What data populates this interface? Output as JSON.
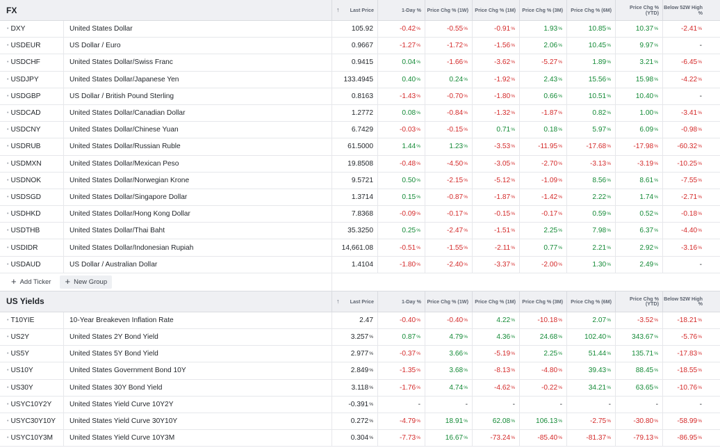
{
  "fx": {
    "title": "FX",
    "columns": {
      "sort": "↑",
      "last": "Last Price",
      "d1": "1-Day %",
      "w1": "Price Chg % (1W)",
      "m1": "Price Chg % (1M)",
      "m3": "Price Chg % (3M)",
      "m6": "Price Chg % (6M)",
      "ytd": "Price Chg % (YTD)",
      "high": "Below 52W High %"
    },
    "rows": [
      [
        "DXY",
        "United States Dollar",
        "105.92",
        "-0.42%",
        "-0.55%",
        "-0.91%",
        "1.93%",
        "10.85%",
        "10.37%",
        "-2.41%"
      ],
      [
        "USDEUR",
        "US Dollar / Euro",
        "0.9667",
        "-1.27%",
        "-1.72%",
        "-1.56%",
        "2.06%",
        "10.45%",
        "9.97%",
        "-"
      ],
      [
        "USDCHF",
        "United States Dollar/Swiss Franc",
        "0.9415",
        "0.04%",
        "-1.66%",
        "-3.62%",
        "-5.27%",
        "1.89%",
        "3.21%",
        "-6.45%"
      ],
      [
        "USDJPY",
        "United States Dollar/Japanese Yen",
        "133.4945",
        "0.40%",
        "0.24%",
        "-1.92%",
        "2.43%",
        "15.56%",
        "15.98%",
        "-4.22%"
      ],
      [
        "USDGBP",
        "US Dollar / British Pound Sterling",
        "0.8163",
        "-1.43%",
        "-0.70%",
        "-1.80%",
        "0.66%",
        "10.51%",
        "10.40%",
        "-"
      ],
      [
        "USDCAD",
        "United States Dollar/Canadian Dollar",
        "1.2772",
        "0.08%",
        "-0.84%",
        "-1.32%",
        "-1.87%",
        "0.82%",
        "1.00%",
        "-3.41%"
      ],
      [
        "USDCNY",
        "United States Dollar/Chinese Yuan",
        "6.7429",
        "-0.03%",
        "-0.15%",
        "0.71%",
        "0.18%",
        "5.97%",
        "6.09%",
        "-0.98%"
      ],
      [
        "USDRUB",
        "United States Dollar/Russian Ruble",
        "61.5000",
        "1.44%",
        "1.23%",
        "-3.53%",
        "-11.95%",
        "-17.68%",
        "-17.98%",
        "-60.32%"
      ],
      [
        "USDMXN",
        "United States Dollar/Mexican Peso",
        "19.8508",
        "-0.48%",
        "-4.50%",
        "-3.05%",
        "-2.70%",
        "-3.13%",
        "-3.19%",
        "-10.25%"
      ],
      [
        "USDNOK",
        "United States Dollar/Norwegian Krone",
        "9.5721",
        "0.50%",
        "-2.15%",
        "-5.12%",
        "-1.09%",
        "8.56%",
        "8.61%",
        "-7.55%"
      ],
      [
        "USDSGD",
        "United States Dollar/Singapore Dollar",
        "1.3714",
        "0.15%",
        "-0.87%",
        "-1.87%",
        "-1.42%",
        "2.22%",
        "1.74%",
        "-2.71%"
      ],
      [
        "USDHKD",
        "United States Dollar/Hong Kong Dollar",
        "7.8368",
        "-0.09%",
        "-0.17%",
        "-0.15%",
        "-0.17%",
        "0.59%",
        "0.52%",
        "-0.18%"
      ],
      [
        "USDTHB",
        "United States Dollar/Thai Baht",
        "35.3250",
        "0.25%",
        "-2.47%",
        "-1.51%",
        "2.25%",
        "7.98%",
        "6.37%",
        "-4.40%"
      ],
      [
        "USDIDR",
        "United States Dollar/Indonesian Rupiah",
        "14,661.08",
        "-0.51%",
        "-1.55%",
        "-2.11%",
        "0.77%",
        "2.21%",
        "2.92%",
        "-3.16%"
      ],
      [
        "USDAUD",
        "US Dollar / Australian Dollar",
        "1.4104",
        "-1.80%",
        "-2.40%",
        "-3.37%",
        "-2.00%",
        "1.30%",
        "2.49%",
        "-"
      ]
    ],
    "add_ticker": "Add Ticker",
    "new_group": "New Group"
  },
  "yields": {
    "title": "US Yields",
    "columns": {
      "sort": "↑",
      "last": "Last Price",
      "d1": "1-Day %",
      "w1": "Price Chg % (1W)",
      "m1": "Price Chg % (1M)",
      "m3": "Price Chg % (3M)",
      "m6": "Price Chg % (6M)",
      "ytd": "Price Chg % (YTD)",
      "high": "Below 52W High %"
    },
    "rows": [
      [
        "T10YIE",
        "10-Year Breakeven Inflation Rate",
        "2.47",
        "-0.40%",
        "-0.40%",
        "4.22%",
        "-10.18%",
        "2.07%",
        "-3.52%",
        "-18.21%"
      ],
      [
        "US2Y",
        "United States 2Y Bond Yield",
        "3.257%",
        "0.87%",
        "4.79%",
        "4.36%",
        "24.68%",
        "102.40%",
        "343.67%",
        "-5.76%"
      ],
      [
        "US5Y",
        "United States 5Y Bond Yield",
        "2.977%",
        "-0.37%",
        "3.66%",
        "-5.19%",
        "2.25%",
        "51.44%",
        "135.71%",
        "-17.83%"
      ],
      [
        "US10Y",
        "United States Government Bond 10Y",
        "2.849%",
        "-1.35%",
        "3.68%",
        "-8.13%",
        "-4.80%",
        "39.43%",
        "88.45%",
        "-18.55%"
      ],
      [
        "US30Y",
        "United States 30Y Bond Yield",
        "3.118%",
        "-1.76%",
        "4.74%",
        "-4.62%",
        "-0.22%",
        "34.21%",
        "63.65%",
        "-10.76%"
      ],
      [
        "USYC10Y2Y",
        "United States Yield Curve 10Y2Y",
        "-0.391%",
        "-",
        "-",
        "-",
        "-",
        "-",
        "-",
        "-"
      ],
      [
        "USYC30Y10Y",
        "United States Yield Curve 30Y10Y",
        "0.272%",
        "-4.79%",
        "18.91%",
        "62.08%",
        "106.13%",
        "-2.75%",
        "-30.80%",
        "-58.99%"
      ],
      [
        "USYC10Y3M",
        "United States Yield Curve 10Y3M",
        "0.304%",
        "-7.73%",
        "16.67%",
        "-73.24%",
        "-85.40%",
        "-81.37%",
        "-79.13%",
        "-86.95%"
      ]
    ]
  },
  "colors": {
    "positive": "#138a36",
    "negative": "#d42a2a",
    "header_bg": "#eff0f3"
  }
}
